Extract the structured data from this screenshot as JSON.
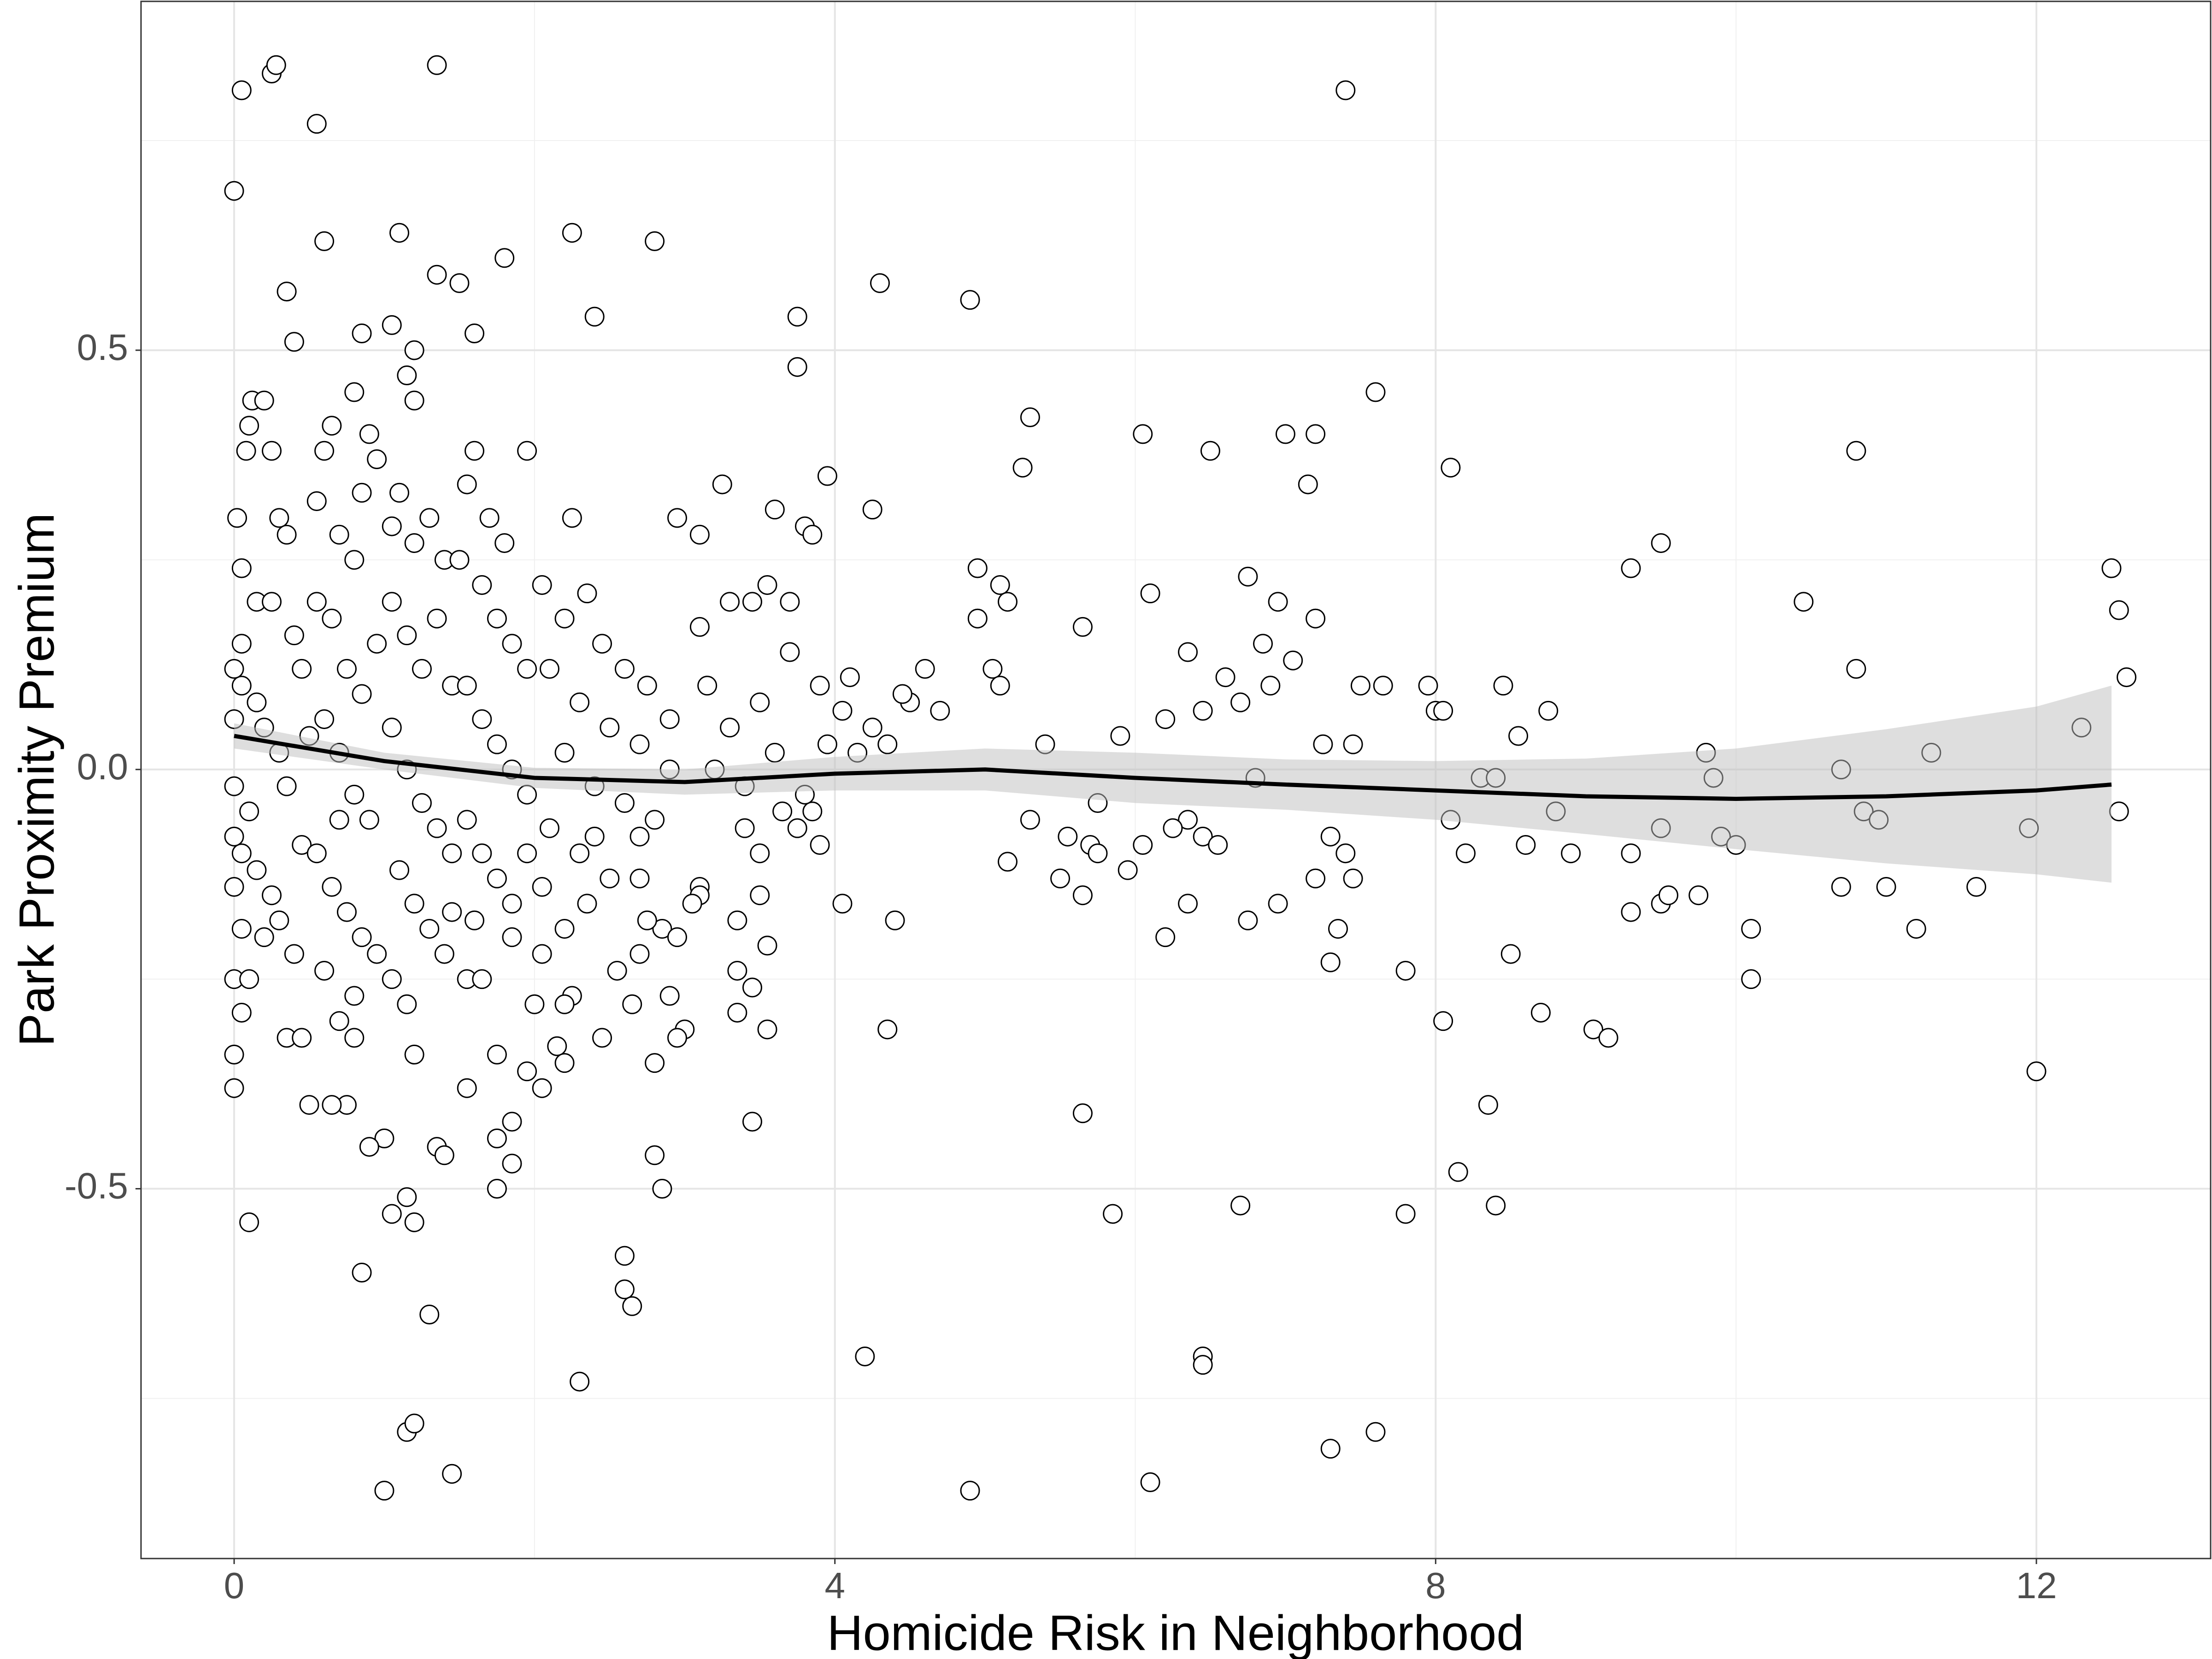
{
  "chart_data": {
    "type": "scatter",
    "xlabel": "Homicide Risk in Neighborhood",
    "ylabel": "Park Proximity Premium",
    "xlim": [
      -0.62,
      13.16
    ],
    "xticks": [
      0,
      4,
      8,
      12
    ],
    "xminorticks": [
      2,
      6,
      10
    ],
    "ylim": [
      -0.941,
      0.916
    ],
    "yticks": [
      -0.5,
      {
        "value": 0,
        "label": "0.0"
      },
      0.5
    ],
    "yminorticks": [
      -0.75,
      -0.25,
      0.25,
      0.75
    ],
    "grid": true,
    "color": "#000000",
    "fill": "#ffffff",
    "x": [
      0.0,
      0.05,
      0.25,
      0.28,
      0.55,
      1.35,
      0.6,
      0.35,
      0.4,
      1.35,
      1.5,
      1.8,
      2.25,
      1.1,
      2.8,
      7.4,
      4.3,
      4.9,
      3.75,
      3.75,
      2.4,
      1.6,
      1.05,
      1.15,
      1.2,
      1.2,
      0.8,
      0.85,
      7.6,
      5.3,
      6.05,
      7.0,
      7.2,
      6.5,
      10.8,
      8.1,
      5.25,
      7.15,
      3.95,
      3.25,
      2.95,
      3.1,
      3.6,
      3.8,
      3.85,
      4.25,
      9.5,
      9.3,
      12.5,
      12.55,
      10.45,
      12.6,
      10.8,
      11.3,
      12.3,
      4.95,
      5.1,
      5.15,
      4.95,
      6.1,
      5.65,
      6.75,
      6.95,
      7.2,
      6.35,
      6.85,
      7.05,
      7.5,
      7.65,
      7.95,
      8.45,
      8.75,
      8.55,
      8.0,
      8.05,
      7.25,
      7.45,
      6.6,
      6.7,
      6.9,
      6.45,
      6.2,
      5.9,
      5.4,
      5.05,
      5.1,
      4.6,
      4.1,
      4.5,
      4.7,
      4.45,
      4.05,
      4.25,
      4.15,
      4.35,
      9.8,
      9.85,
      8.3,
      8.4,
      6.8,
      10.7,
      10.85,
      10.95,
      11.95,
      12.55,
      9.5,
      9.9,
      10.0,
      9.3,
      8.9,
      8.6,
      8.2,
      8.8,
      8.1,
      7.3,
      7.4,
      6.45,
      6.55,
      6.35,
      6.25,
      6.05,
      5.55,
      5.3,
      5.15,
      5.5,
      5.65,
      5.7,
      5.75,
      5.75,
      5.95,
      6.35,
      6.2,
      6.75,
      6.95,
      7.2,
      7.45,
      7.35,
      7.3,
      7.8,
      8.05,
      8.5,
      8.7,
      9.05,
      9.15,
      9.3,
      9.5,
      9.55,
      9.75,
      10.1,
      10.1,
      10.7,
      11.0,
      11.2,
      11.6,
      12.0,
      8.35,
      8.4,
      8.15,
      7.8,
      6.7,
      5.85,
      5.65,
      6.45,
      6.45,
      4.2,
      6.1,
      7.3,
      7.6,
      4.9,
      4.35,
      4.4,
      4.05,
      3.45,
      3.55,
      3.35,
      3.35,
      3.45,
      3.5,
      3.55,
      3.35,
      3.1,
      3.1,
      2.85,
      2.75,
      2.7,
      2.55,
      2.65,
      2.45,
      2.8,
      2.85,
      2.8,
      2.6,
      2.6,
      2.65,
      2.3,
      1.3,
      1.45,
      1.15,
      1.2,
      1.0,
      0.85,
      1.05,
      1.15,
      1.2,
      1.35,
      1.4,
      1.75,
      1.85,
      1.85,
      1.75,
      1.55,
      1.75,
      1.95,
      2.05,
      2.15,
      2.2,
      1.0,
      0.9,
      0.75,
      0.65,
      0.5,
      0.1,
      0.0,
      0.0,
      0.05,
      0.0,
      0.1,
      0.35,
      0.45,
      0.7,
      0.8,
      1.2,
      1.55,
      1.65,
      1.85,
      2.05,
      2.25,
      2.2,
      2.0,
      2.2,
      3.65,
      3.4,
      3.5,
      3.75,
      3.85,
      3.9,
      2.4,
      2.7,
      2.7,
      2.95,
      2.9,
      3.05,
      3.0,
      2.95,
      0.02,
      0.05,
      0.05,
      0.08,
      0.1,
      0.12,
      0.2,
      0.25,
      0.3,
      0.35,
      0.15,
      0.25,
      0.4,
      0.45,
      0.05,
      0.15,
      0.2,
      0.3,
      0.35,
      0.1,
      0.05,
      0.15,
      0.25,
      0.3,
      0.4,
      0.05,
      0.2,
      0.45,
      0.5,
      0.0,
      0.0,
      0.0,
      0.0,
      0.0,
      0.55,
      0.6,
      0.65,
      0.7,
      0.8,
      0.85,
      0.9,
      0.95,
      0.55,
      0.65,
      0.75,
      0.85,
      0.95,
      0.6,
      0.7,
      0.8,
      0.9,
      0.55,
      0.65,
      0.75,
      0.85,
      0.95,
      0.6,
      0.8,
      0.7,
      1.05,
      1.1,
      1.2,
      1.3,
      1.4,
      1.05,
      1.15,
      1.25,
      1.35,
      1.45,
      1.05,
      1.15,
      1.25,
      1.35,
      1.45,
      1.1,
      1.2,
      1.3,
      1.4,
      1.05,
      1.15,
      1.45,
      1.55,
      1.6,
      1.7,
      1.8,
      1.95,
      1.5,
      1.65,
      1.75,
      1.85,
      1.95,
      1.55,
      1.65,
      1.75,
      1.85,
      1.95,
      1.55,
      1.65,
      1.75,
      1.85,
      1.95,
      1.6,
      2.05,
      2.2,
      2.35,
      2.45,
      2.6,
      2.75,
      2.9,
      2.1,
      2.3,
      2.5,
      2.7,
      2.2,
      2.4,
      2.6,
      2.8,
      2.1,
      2.3,
      2.5,
      2.05,
      2.35,
      2.9,
      2.25,
      3.15,
      3.3,
      3.5,
      3.7,
      3.9,
      3.2,
      3.4,
      3.6,
      3.8,
      3.7,
      3.55,
      3.45,
      3.1,
      3.3,
      3.95
    ],
    "values": [
      0.69,
      0.81,
      0.83,
      0.84,
      0.77,
      0.84,
      0.63,
      0.57,
      0.51,
      0.59,
      0.58,
      0.61,
      0.64,
      0.64,
      0.63,
      0.81,
      0.58,
      0.56,
      0.54,
      0.48,
      0.54,
      0.52,
      0.53,
      0.47,
      0.5,
      0.44,
      0.45,
      0.52,
      0.45,
      0.42,
      0.4,
      0.4,
      0.4,
      0.38,
      0.38,
      0.36,
      0.36,
      0.34,
      0.35,
      0.34,
      0.3,
      0.28,
      0.31,
      0.29,
      0.28,
      0.31,
      0.27,
      0.24,
      0.24,
      0.19,
      0.2,
      0.11,
      0.12,
      0.02,
      0.05,
      0.24,
      0.22,
      0.2,
      0.18,
      0.21,
      0.17,
      0.23,
      0.2,
      0.18,
      0.14,
      0.15,
      0.13,
      0.1,
      0.1,
      0.1,
      0.1,
      0.07,
      0.04,
      0.07,
      0.07,
      0.03,
      0.03,
      0.11,
      0.08,
      0.1,
      0.07,
      0.06,
      0.04,
      0.03,
      0.12,
      0.1,
      0.12,
      0.11,
      0.08,
      0.07,
      0.09,
      0.07,
      0.05,
      0.02,
      0.03,
      0.02,
      -0.01,
      -0.01,
      -0.01,
      -0.01,
      0.0,
      -0.05,
      -0.06,
      -0.07,
      -0.05,
      -0.07,
      -0.08,
      -0.09,
      -0.1,
      -0.1,
      -0.09,
      -0.1,
      -0.05,
      -0.06,
      -0.08,
      -0.1,
      -0.08,
      -0.09,
      -0.06,
      -0.07,
      -0.09,
      -0.08,
      -0.06,
      -0.11,
      -0.13,
      -0.15,
      -0.09,
      -0.1,
      -0.04,
      -0.12,
      -0.16,
      -0.2,
      -0.18,
      -0.16,
      -0.13,
      -0.13,
      -0.19,
      -0.23,
      -0.24,
      -0.3,
      -0.22,
      -0.29,
      -0.31,
      -0.32,
      -0.17,
      -0.16,
      -0.15,
      -0.15,
      -0.19,
      -0.25,
      -0.14,
      -0.14,
      -0.19,
      -0.14,
      -0.36,
      -0.4,
      -0.52,
      -0.48,
      -0.53,
      -0.52,
      -0.53,
      -0.41,
      -0.7,
      -0.71,
      -0.7,
      -0.85,
      -0.81,
      -0.79,
      -0.86,
      -0.31,
      -0.18,
      -0.16,
      -0.42,
      -0.31,
      -0.29,
      -0.24,
      -0.26,
      -0.15,
      -0.21,
      -0.18,
      -0.14,
      -0.15,
      -0.19,
      -0.18,
      -0.22,
      -0.24,
      -0.28,
      -0.32,
      -0.35,
      -0.5,
      -0.46,
      -0.58,
      -0.62,
      -0.64,
      -0.73,
      -0.65,
      -0.84,
      -0.79,
      -0.78,
      -0.86,
      -0.6,
      -0.53,
      -0.51,
      -0.54,
      -0.45,
      -0.46,
      -0.5,
      -0.47,
      -0.42,
      -0.44,
      -0.38,
      -0.34,
      -0.36,
      -0.38,
      -0.33,
      -0.35,
      -0.44,
      -0.45,
      -0.4,
      -0.4,
      -0.4,
      -0.54,
      -0.38,
      -0.34,
      -0.29,
      -0.25,
      -0.25,
      -0.32,
      -0.32,
      -0.3,
      -0.32,
      -0.34,
      -0.25,
      -0.25,
      -0.2,
      -0.22,
      -0.27,
      -0.19,
      -0.28,
      -0.28,
      -0.05,
      -0.07,
      -0.1,
      -0.07,
      -0.05,
      -0.09,
      -0.08,
      -0.08,
      -0.13,
      -0.2,
      -0.27,
      -0.16,
      -0.31,
      -0.32,
      0.3,
      0.24,
      0.15,
      0.38,
      0.41,
      0.44,
      0.44,
      0.38,
      0.3,
      0.28,
      0.2,
      0.2,
      0.16,
      0.12,
      0.1,
      0.08,
      0.05,
      0.02,
      -0.02,
      -0.05,
      -0.1,
      -0.12,
      -0.15,
      -0.18,
      -0.22,
      -0.19,
      -0.2,
      -0.09,
      0.04,
      0.06,
      0.12,
      -0.02,
      -0.08,
      -0.14,
      0.32,
      0.38,
      0.41,
      0.28,
      0.25,
      0.33,
      0.4,
      0.37,
      0.2,
      0.18,
      0.12,
      0.09,
      0.15,
      0.06,
      0.02,
      -0.03,
      -0.06,
      -0.1,
      -0.14,
      -0.17,
      -0.2,
      -0.22,
      -0.24,
      -0.27,
      -0.06,
      0.29,
      0.33,
      0.27,
      0.3,
      0.25,
      0.2,
      0.16,
      0.12,
      0.18,
      0.1,
      0.05,
      0.0,
      -0.04,
      -0.07,
      -0.1,
      -0.12,
      -0.16,
      -0.19,
      -0.22,
      -0.25,
      -0.28,
      -0.17,
      0.34,
      0.38,
      0.3,
      0.27,
      0.38,
      0.25,
      0.22,
      0.18,
      0.15,
      0.12,
      0.1,
      0.06,
      0.03,
      0.0,
      -0.03,
      -0.06,
      -0.1,
      -0.13,
      -0.16,
      -0.1,
      -0.18,
      0.22,
      0.18,
      0.21,
      0.15,
      0.12,
      0.1,
      0.06,
      0.12,
      0.08,
      0.05,
      0.03,
      0.02,
      -0.02,
      -0.04,
      -0.06,
      -0.07,
      -0.1,
      -0.13,
      -0.14,
      -0.16,
      0.0,
      0.3,
      0.1,
      0.05,
      0.08,
      0.14,
      0.1,
      0.0,
      -0.02,
      0.02,
      -0.03,
      0.2,
      0.22,
      0.2,
      0.17,
      0.2,
      0.03
    ],
    "smooth": {
      "color": "#000000",
      "band_color": "#bdbdbd",
      "x": [
        0,
        1,
        2,
        3,
        4,
        5,
        6,
        7,
        8,
        9,
        10,
        11,
        12,
        12.5
      ],
      "values": [
        0.04,
        0.01,
        -0.01,
        -0.015,
        -0.005,
        0.0,
        -0.01,
        -0.018,
        -0.025,
        -0.032,
        -0.035,
        -0.032,
        -0.025,
        -0.018
      ],
      "lower": [
        0.025,
        0.0,
        -0.022,
        -0.03,
        -0.025,
        -0.025,
        -0.04,
        -0.048,
        -0.06,
        -0.077,
        -0.095,
        -0.112,
        -0.125,
        -0.135
      ],
      "upper": [
        0.055,
        0.02,
        0.002,
        0.0,
        0.015,
        0.025,
        0.02,
        0.012,
        0.01,
        0.013,
        0.025,
        0.048,
        0.075,
        0.1
      ]
    }
  }
}
